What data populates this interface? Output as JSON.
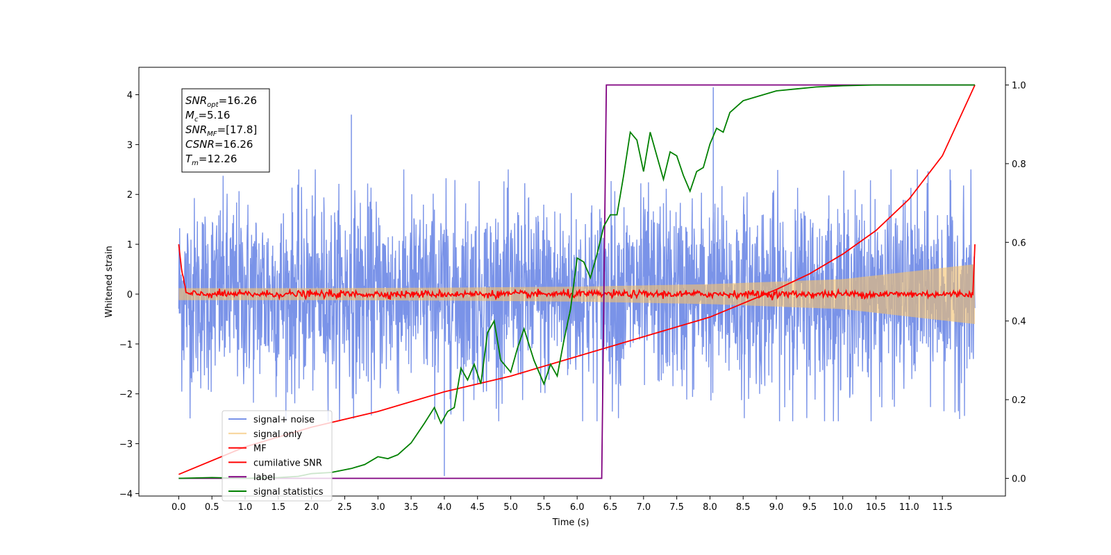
{
  "chart_data": {
    "type": "line",
    "xlabel": "Time (s)",
    "ylabel": "Whitened strain",
    "xlim": [
      -0.6,
      12.45
    ],
    "ylim": [
      -4.05,
      4.55
    ],
    "ylim_right": [
      -0.045,
      1.045
    ],
    "grid": false,
    "legend_position": "lower-left",
    "x_ticks": [
      "0.0",
      "0.5",
      "1.0",
      "1.5",
      "2.0",
      "2.5",
      "3.0",
      "3.5",
      "4.0",
      "4.5",
      "5.0",
      "5.5",
      "6.0",
      "6.5",
      "7.0",
      "7.5",
      "8.0",
      "8.5",
      "9.0",
      "9.5",
      "10.0",
      "10.5",
      "11.0",
      "11.5"
    ],
    "y_ticks_left": [
      "4",
      "3",
      "2",
      "1",
      "0",
      "−1",
      "−2",
      "−3",
      "−4"
    ],
    "y_ticks_right": [
      "1.0",
      "0.8",
      "0.6",
      "0.4",
      "0.2",
      "0.0"
    ],
    "annotation": [
      {
        "sym": "SNR",
        "sub": "opt",
        "rest": "=16.26"
      },
      {
        "sym": "M",
        "sub": "c",
        "rest": "=5.16"
      },
      {
        "sym": "SNR",
        "sub": "MF",
        "rest": "=[17.8]"
      },
      {
        "sym": "CSNR",
        "sub": "",
        "rest": "=16.26"
      },
      {
        "sym": "T",
        "sub": "m",
        "rest": "=12.26"
      }
    ],
    "series": [
      {
        "name": "signal+ noise",
        "color": "#7a93e8",
        "axis": "left",
        "description_values": {
          "x_range": [
            0,
            11.99
          ],
          "amplitude_envelope": [
            -2.6,
            3.6
          ],
          "outliers": [
            [
              2.6,
              3.6
            ],
            [
              4.0,
              -3.65
            ],
            [
              8.05,
              4.15
            ]
          ]
        }
      },
      {
        "name": "signal only",
        "color": "#f5c26b",
        "axis": "left",
        "envelope": {
          "x": [
            0,
            2,
            4,
            6,
            8,
            10,
            11.99
          ],
          "half_width": [
            0.12,
            0.12,
            0.13,
            0.15,
            0.2,
            0.3,
            0.6
          ]
        }
      },
      {
        "name": "MF",
        "color": "#ff0000",
        "axis": "left",
        "baseline": 0.0,
        "jitter": 0.06,
        "edge_value": 1.0
      },
      {
        "name": "cumilative SNR",
        "color": "#ff0000",
        "axis": "right",
        "x": [
          0,
          1,
          2,
          3,
          4,
          5,
          6,
          7,
          8,
          8.5,
          9,
          9.5,
          10,
          10.5,
          11,
          11.5,
          11.99
        ],
        "y": [
          0.01,
          0.08,
          0.13,
          0.17,
          0.22,
          0.26,
          0.31,
          0.36,
          0.41,
          0.445,
          0.48,
          0.52,
          0.57,
          0.63,
          0.71,
          0.82,
          1.0
        ]
      },
      {
        "name": "label",
        "color": "#800080",
        "axis": "right",
        "x": [
          0,
          6.37,
          6.44,
          11.99
        ],
        "y": [
          0.0,
          0.0,
          1.0,
          1.0
        ]
      },
      {
        "name": "signal statistics",
        "color": "#008000",
        "axis": "right",
        "x": [
          0,
          0.5,
          1.0,
          1.5,
          1.8,
          2.0,
          2.3,
          2.6,
          2.8,
          3.0,
          3.15,
          3.3,
          3.5,
          3.7,
          3.85,
          3.95,
          4.05,
          4.15,
          4.25,
          4.35,
          4.45,
          4.55,
          4.65,
          4.75,
          4.85,
          5.0,
          5.1,
          5.2,
          5.35,
          5.5,
          5.6,
          5.7,
          5.8,
          5.9,
          6.0,
          6.1,
          6.2,
          6.3,
          6.4,
          6.5,
          6.6,
          6.7,
          6.8,
          6.9,
          7.0,
          7.1,
          7.2,
          7.3,
          7.4,
          7.5,
          7.6,
          7.7,
          7.8,
          7.9,
          8.0,
          8.1,
          8.2,
          8.3,
          8.5,
          8.7,
          9.0,
          9.3,
          9.6,
          10.0,
          10.5,
          11.0,
          11.5,
          11.99
        ],
        "y": [
          0.0,
          0.002,
          0.0,
          0.002,
          0.005,
          0.012,
          0.015,
          0.025,
          0.035,
          0.055,
          0.05,
          0.06,
          0.09,
          0.14,
          0.18,
          0.14,
          0.17,
          0.18,
          0.28,
          0.25,
          0.29,
          0.24,
          0.37,
          0.4,
          0.3,
          0.27,
          0.33,
          0.38,
          0.3,
          0.24,
          0.29,
          0.26,
          0.35,
          0.43,
          0.56,
          0.55,
          0.51,
          0.57,
          0.64,
          0.67,
          0.67,
          0.77,
          0.88,
          0.86,
          0.78,
          0.88,
          0.82,
          0.76,
          0.83,
          0.82,
          0.77,
          0.73,
          0.78,
          0.79,
          0.85,
          0.89,
          0.88,
          0.93,
          0.96,
          0.97,
          0.985,
          0.99,
          0.995,
          0.998,
          1.0,
          1.0,
          1.0,
          1.0
        ]
      }
    ]
  }
}
